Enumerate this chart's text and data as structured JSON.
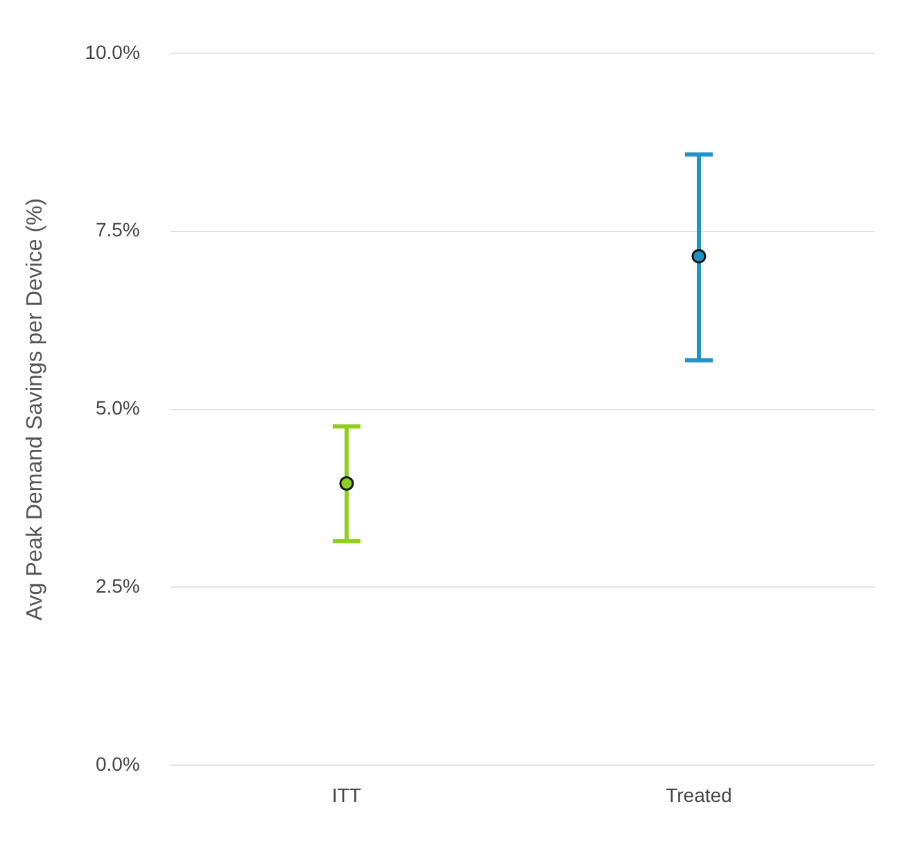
{
  "chart_data": {
    "type": "scatter",
    "ylabel": "Avg Peak Demand Savings per Device (%)",
    "categories": [
      "ITT",
      "Treated"
    ],
    "series": [
      {
        "colors": [
          "#8fce1e",
          "#1f94c4"
        ],
        "values": [
          3.96,
          7.15
        ],
        "errors": [
          [
            3.15,
            4.76
          ],
          [
            5.69,
            8.58
          ]
        ]
      }
    ],
    "marker": "circle",
    "ylim": [
      0,
      10
    ],
    "yticks": [
      {
        "value": 0,
        "label": "0.0%"
      },
      {
        "value": 2.5,
        "label": "2.5%"
      },
      {
        "value": 5,
        "label": "5.0%"
      },
      {
        "value": 7.5,
        "label": "7.5%"
      },
      {
        "value": 10,
        "label": "10.0%"
      }
    ],
    "grid": "y"
  }
}
